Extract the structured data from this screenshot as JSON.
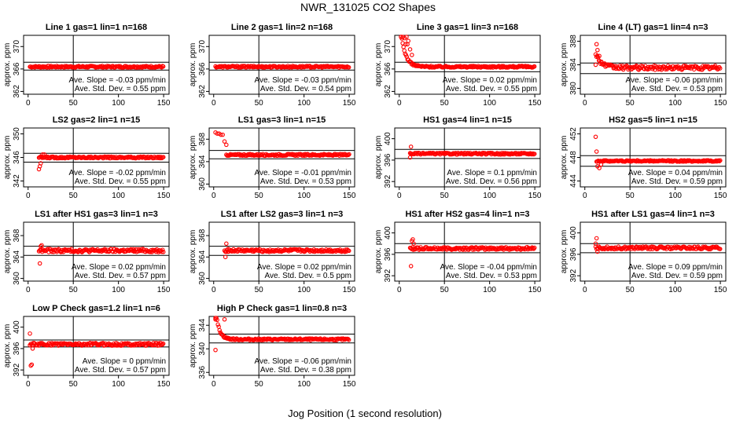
{
  "figure": {
    "title": "NWR_131025  CO2 Shapes",
    "xlabel": "Jog Position (1 second resolution)"
  },
  "chart_data": [
    {
      "type": "scatter",
      "title": "Line 1 gas=1 lin=1 n=168",
      "ylabel": "approx. ppm",
      "xticks": [
        0,
        50,
        100,
        150
      ],
      "yticks": [
        362,
        366,
        370
      ],
      "ylim": [
        361.5,
        372
      ],
      "xlim": [
        -5,
        156
      ],
      "ref_lines": [
        365.8,
        367.2
      ],
      "slope_label": "Ave. Slope = -0.03  ppm/min",
      "std_label": "Ave. Std. Dev. = 0.55  ppm",
      "shape": {
        "start": 2,
        "end": 150,
        "level": 366.4,
        "noise": 0.15,
        "early": [],
        "decay": null
      }
    },
    {
      "type": "scatter",
      "title": "Line 2 gas=1 lin=2 n=168",
      "ylabel": "approx. ppm",
      "xticks": [
        0,
        50,
        100,
        150
      ],
      "yticks": [
        362,
        366,
        370
      ],
      "ylim": [
        361.5,
        372
      ],
      "xlim": [
        -5,
        156
      ],
      "ref_lines": [
        365.8,
        367.2
      ],
      "slope_label": "Ave. Slope = -0.03  ppm/min",
      "std_label": "Ave. Std. Dev. = 0.54  ppm",
      "shape": {
        "start": 2,
        "end": 150,
        "level": 366.4,
        "noise": 0.15,
        "early": [],
        "decay": null
      }
    },
    {
      "type": "scatter",
      "title": "Line 3 gas=1 lin=3 n=168",
      "ylabel": "approx. ppm",
      "xticks": [
        0,
        50,
        100,
        150
      ],
      "yticks": [
        362,
        366,
        370
      ],
      "ylim": [
        361.5,
        372
      ],
      "xlim": [
        -5,
        156
      ],
      "ref_lines": [
        365.5,
        367.2
      ],
      "slope_label": "Ave. Slope = 0.02  ppm/min",
      "std_label": "Ave. Std. Dev. = 0.55  ppm",
      "shape": {
        "start": 2,
        "end": 150,
        "level": 366.4,
        "noise": 0.15,
        "early": [
          [
            2,
            372
          ],
          [
            4,
            372
          ],
          [
            6,
            371.5
          ],
          [
            8,
            372
          ],
          [
            10,
            371
          ],
          [
            7,
            370.4
          ],
          [
            9,
            370.4
          ],
          [
            12,
            369.5
          ],
          [
            14,
            368.5
          ]
        ],
        "decay": {
          "amp": 6,
          "tau": 5
        }
      }
    },
    {
      "type": "scatter",
      "title": "Line 4 (LT) gas=1 lin=4 n=3",
      "ylabel": "approx. ppm",
      "xticks": [
        0,
        50,
        100,
        150
      ],
      "yticks": [
        380,
        384,
        388
      ],
      "ylim": [
        379,
        389
      ],
      "xlim": [
        -5,
        156
      ],
      "ref_lines": [
        382.5,
        384.3
      ],
      "slope_label": "Ave. Slope = -0.06  ppm/min",
      "std_label": "Ave. Std. Dev. = 0.53  ppm",
      "shape": {
        "start": 12,
        "end": 150,
        "level": 383.5,
        "noise": 0.35,
        "early": [
          [
            13,
            387.5
          ],
          [
            14,
            386.5
          ],
          [
            16,
            385.5
          ],
          [
            18,
            384.5
          ],
          [
            12,
            384
          ]
        ],
        "decay": {
          "amp": 2.5,
          "tau": 6
        }
      }
    },
    {
      "type": "scatter",
      "title": "LS2 gas=2 lin=1 n=15",
      "ylabel": "approx. ppm",
      "xticks": [
        0,
        50,
        100,
        150
      ],
      "yticks": [
        342,
        346,
        350
      ],
      "ylim": [
        341,
        351
      ],
      "xlim": [
        -5,
        156
      ],
      "ref_lines": [
        345.2,
        346.7
      ],
      "slope_label": "Ave. Slope = -0.02  ppm/min",
      "std_label": "Ave. Std. Dev. = 0.55  ppm",
      "shape": {
        "start": 12,
        "end": 150,
        "level": 346,
        "noise": 0.15,
        "early": [
          [
            12,
            344
          ],
          [
            13,
            344.5
          ],
          [
            14,
            345
          ],
          [
            16,
            346.5
          ],
          [
            18,
            346.5
          ]
        ],
        "decay": null
      }
    },
    {
      "type": "scatter",
      "title": "LS1 gas=3 lin=1 n=15",
      "ylabel": "approx. ppm",
      "xticks": [
        0,
        50,
        100,
        150
      ],
      "yticks": [
        360,
        364,
        368
      ],
      "ylim": [
        359.5,
        370
      ],
      "xlim": [
        -5,
        156
      ],
      "ref_lines": [
        364.5,
        366
      ],
      "slope_label": "Ave. Slope = -0.01  ppm/min",
      "std_label": "Ave. Std. Dev. = 0.53  ppm",
      "shape": {
        "start": 14,
        "end": 150,
        "level": 365.2,
        "noise": 0.15,
        "early": [
          [
            2,
            369.2
          ],
          [
            4,
            369
          ],
          [
            6,
            369
          ],
          [
            8,
            368.8
          ],
          [
            10,
            368.8
          ],
          [
            12,
            367.6
          ],
          [
            14,
            367
          ]
        ],
        "decay": null
      }
    },
    {
      "type": "scatter",
      "title": "HS1 gas=4 lin=1 n=15",
      "ylabel": "approx. ppm",
      "xticks": [
        0,
        50,
        100,
        150
      ],
      "yticks": [
        392,
        396,
        400
      ],
      "ylim": [
        391,
        402
      ],
      "xlim": [
        -5,
        156
      ],
      "ref_lines": [
        396.3,
        398
      ],
      "slope_label": "Ave. Slope = 0.1  ppm/min",
      "std_label": "Ave. Std. Dev. = 0.56  ppm",
      "shape": {
        "start": 12,
        "end": 150,
        "level": 397.2,
        "noise": 0.15,
        "early": [
          [
            13,
            398.5
          ],
          [
            12,
            396.5
          ]
        ],
        "decay": null
      }
    },
    {
      "type": "scatter",
      "title": "HS2 gas=5 lin=1 n=15",
      "ylabel": "approx. ppm",
      "xticks": [
        0,
        50,
        100,
        150
      ],
      "yticks": [
        444,
        448,
        452
      ],
      "ylim": [
        443,
        453
      ],
      "xlim": [
        -5,
        156
      ],
      "ref_lines": [
        446.5,
        448.3
      ],
      "slope_label": "Ave. Slope = 0.04  ppm/min",
      "std_label": "Ave. Std. Dev. = 0.59  ppm",
      "shape": {
        "start": 13,
        "end": 150,
        "level": 447.4,
        "noise": 0.12,
        "early": [
          [
            12,
            451.5
          ],
          [
            13,
            449
          ],
          [
            14,
            446.5
          ],
          [
            16,
            446.2
          ],
          [
            18,
            446.8
          ]
        ],
        "decay": null
      }
    },
    {
      "type": "scatter",
      "title": "LS1 after HS1 gas=3 lin=1 n=3",
      "ylabel": "approx. ppm",
      "xticks": [
        0,
        50,
        100,
        150
      ],
      "yticks": [
        360,
        364,
        368
      ],
      "ylim": [
        359.5,
        370.5
      ],
      "xlim": [
        -5,
        156
      ],
      "ref_lines": [
        364.3,
        366
      ],
      "slope_label": "Ave. Slope = 0.02  ppm/min",
      "std_label": "Ave. Std. Dev. = 0.57  ppm",
      "shape": {
        "start": 12,
        "end": 150,
        "level": 365.2,
        "noise": 0.3,
        "early": [
          [
            13,
            362.8
          ],
          [
            14,
            366
          ],
          [
            15,
            366.2
          ]
        ],
        "decay": null
      }
    },
    {
      "type": "scatter",
      "title": "LS1 after LS2 gas=3 lin=1 n=3",
      "ylabel": "approx. ppm",
      "xticks": [
        0,
        50,
        100,
        150
      ],
      "yticks": [
        360,
        364,
        368
      ],
      "ylim": [
        359.5,
        370.5
      ],
      "xlim": [
        -5,
        156
      ],
      "ref_lines": [
        364.3,
        366
      ],
      "slope_label": "Ave. Slope = 0.02  ppm/min",
      "std_label": "Ave. Std. Dev. = 0.5  ppm",
      "shape": {
        "start": 12,
        "end": 150,
        "level": 365.2,
        "noise": 0.25,
        "early": [
          [
            13,
            364
          ],
          [
            14,
            366.5
          ],
          [
            16,
            365.5
          ]
        ],
        "decay": null
      }
    },
    {
      "type": "scatter",
      "title": "HS1 after HS2 gas=4 lin=1 n=3",
      "ylabel": "approx. ppm",
      "xticks": [
        0,
        50,
        100,
        150
      ],
      "yticks": [
        392,
        396,
        400
      ],
      "ylim": [
        391,
        402
      ],
      "xlim": [
        -5,
        156
      ],
      "ref_lines": [
        396.3,
        398
      ],
      "slope_label": "Ave. Slope = -0.04  ppm/min",
      "std_label": "Ave. Std. Dev. = 0.53  ppm",
      "shape": {
        "start": 12,
        "end": 150,
        "level": 397.1,
        "noise": 0.25,
        "early": [
          [
            13,
            393.8
          ],
          [
            14,
            398.5
          ],
          [
            15,
            398.8
          ],
          [
            16,
            398
          ]
        ],
        "decay": null
      }
    },
    {
      "type": "scatter",
      "title": "HS1 after LS1 gas=4 lin=1 n=3",
      "ylabel": "approx. ppm",
      "xticks": [
        0,
        50,
        100,
        150
      ],
      "yticks": [
        392,
        396,
        400
      ],
      "ylim": [
        391,
        402
      ],
      "xlim": [
        -5,
        156
      ],
      "ref_lines": [
        396.3,
        398
      ],
      "slope_label": "Ave. Slope = 0.09  ppm/min",
      "std_label": "Ave. Std. Dev. = 0.59  ppm",
      "shape": {
        "start": 12,
        "end": 150,
        "level": 397.2,
        "noise": 0.25,
        "early": [
          [
            13,
            399
          ],
          [
            14,
            396.5
          ],
          [
            12,
            398
          ]
        ],
        "decay": null
      }
    },
    {
      "type": "scatter",
      "title": "Low P Check gas=1.2 lin=1 n=6",
      "ylabel": "approx. ppm",
      "xticks": [
        0,
        50,
        100,
        150
      ],
      "yticks": [
        392,
        396,
        400
      ],
      "ylim": [
        391,
        402
      ],
      "xlim": [
        -5,
        156
      ],
      "ref_lines": [
        396.3,
        397.6
      ],
      "slope_label": "Ave. Slope = 0  ppm/min",
      "std_label": "Ave. Std. Dev. = 0.57  ppm",
      "shape": {
        "start": 2,
        "end": 150,
        "level": 396.8,
        "noise": 0.25,
        "early": [
          [
            2,
            398.8
          ],
          [
            3,
            392.8
          ],
          [
            4,
            393
          ],
          [
            5,
            396
          ]
        ],
        "decay": null
      }
    },
    {
      "type": "scatter",
      "title": "High P Check gas=1 lin=0.8 n=3",
      "ylabel": "approx. ppm",
      "xticks": [
        0,
        50,
        100,
        150
      ],
      "yticks": [
        336,
        340,
        344
      ],
      "ylim": [
        335.5,
        345.5
      ],
      "xlim": [
        -5,
        156
      ],
      "ref_lines": [
        341,
        342.5
      ],
      "slope_label": "Ave. Slope = -0.06  ppm/min",
      "std_label": "Ave. Std. Dev. = 0.38  ppm",
      "shape": {
        "start": 2,
        "end": 150,
        "level": 341.6,
        "noise": 0.15,
        "early": [
          [
            2,
            339.8
          ],
          [
            12,
            345
          ],
          [
            2,
            345
          ]
        ],
        "decay": {
          "amp": 5,
          "tau": 4
        }
      }
    }
  ]
}
